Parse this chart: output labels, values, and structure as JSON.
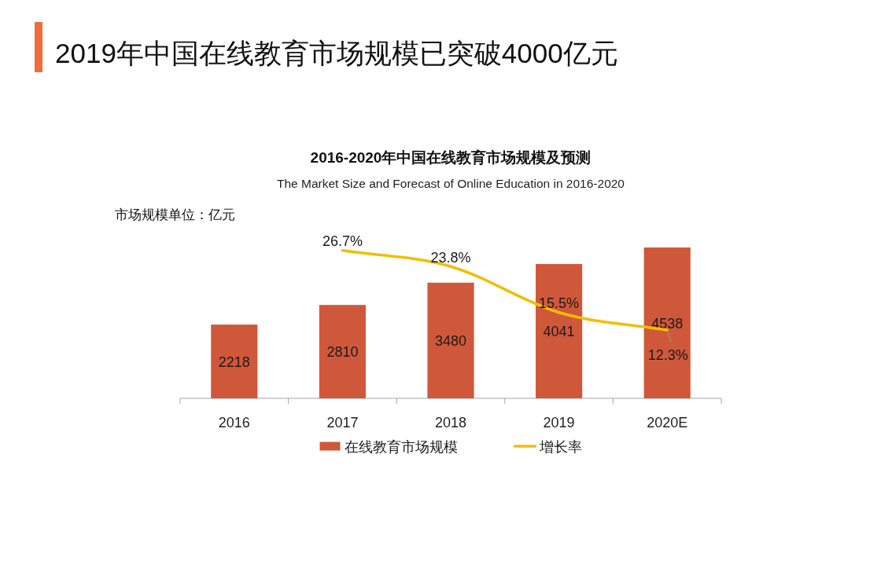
{
  "chart_data": {
    "type": "bar",
    "title": "2019年中国在线教育市场规模已突破4000亿元",
    "subtitle": "2016-2020年中国在线教育市场规模及预测",
    "annotations": [
      "The Market Size and Forecast of Online Education in 2016-2020"
    ],
    "ylabel": "市场规模单位：亿元",
    "categories": [
      "2016",
      "2017",
      "2018",
      "2019",
      "2020E"
    ],
    "series": [
      {
        "name": "在线教育市场规模",
        "color": "#d0583a",
        "values": [
          2218,
          2810,
          3480,
          4041,
          4538
        ],
        "value_labels": [
          "2218",
          "2810",
          "3480",
          "4041",
          "4538"
        ]
      },
      {
        "name": "增长率",
        "type": "line",
        "axis": "y2",
        "color": "#f2be00",
        "values": [
          null,
          26.7,
          23.8,
          15.5,
          12.3
        ],
        "value_labels": [
          null,
          "26.7%",
          "23.8%",
          "15.5%",
          "12.3%"
        ]
      }
    ],
    "tick_labels": "x",
    "legend": "bottom"
  }
}
